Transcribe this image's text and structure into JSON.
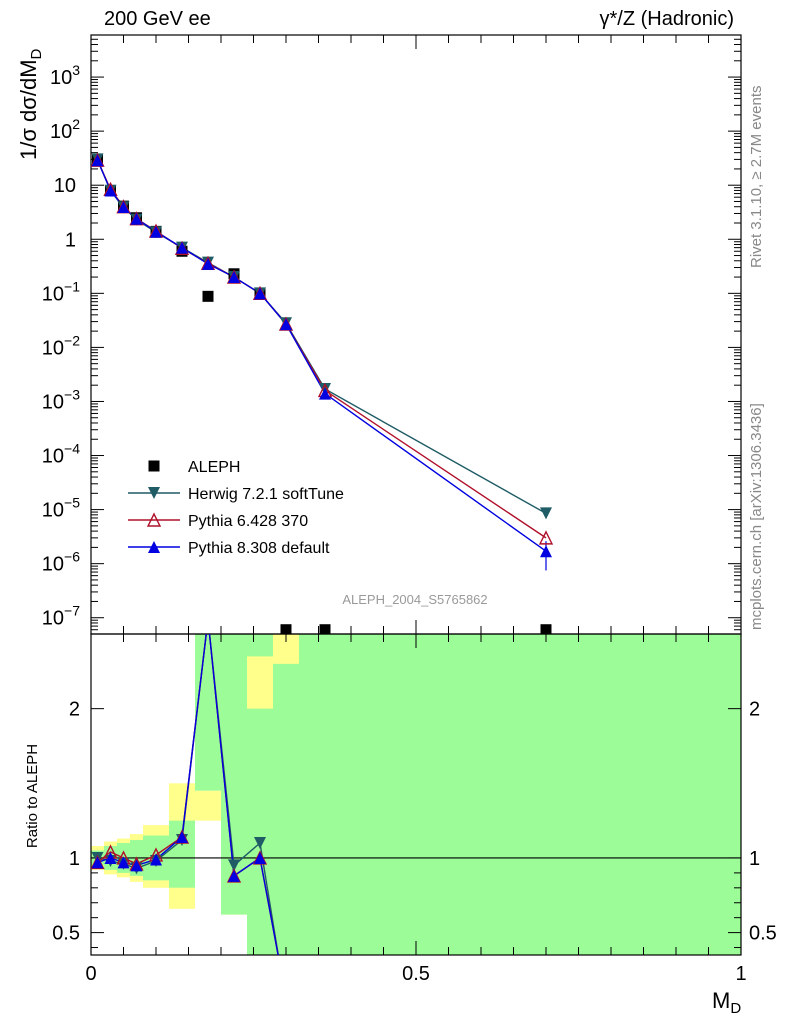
{
  "header": {
    "left": "200 GeV ee",
    "right": "γ*/Z (Hadronic)"
  },
  "side_labels": {
    "rivet": "Rivet 3.1.10, ≥ 2.7M events",
    "mcplots": "mcplots.cern.ch [arXiv:1306.3436]"
  },
  "chart_data": {
    "type": "line",
    "analysis_label": "ALEPH_2004_S5765862",
    "xlabel": "M_D",
    "xlim": [
      0,
      1
    ],
    "x_ticks": [
      "0",
      "0.5",
      "1"
    ],
    "main": {
      "ylabel": "1/σ  dσ/dM_D",
      "yscale": "log",
      "ylim": [
        5e-08,
        6000
      ],
      "y_ticks": [
        "10^-7",
        "10^-6",
        "10^-5",
        "10^-4",
        "10^-3",
        "10^-2",
        "10^-1",
        "1",
        "10",
        "10^2",
        "10^3"
      ],
      "legend_position": "lower-left",
      "series": [
        {
          "name": "ALEPH",
          "color": "#000000",
          "marker": "square",
          "points": [
            [
              0.01,
              30
            ],
            [
              0.03,
              8
            ],
            [
              0.05,
              4.1
            ],
            [
              0.07,
              2.5
            ],
            [
              0.1,
              1.4
            ],
            [
              0.14,
              0.6
            ],
            [
              0.18,
              0.088
            ],
            [
              0.22,
              0.23
            ],
            [
              0.26,
              0.1
            ],
            [
              0.3,
              6e-08
            ],
            [
              0.36,
              6e-08
            ],
            [
              0.7,
              6e-08
            ]
          ]
        },
        {
          "name": "Herwig 7.2.1 softTune",
          "color": "#1f5c66",
          "marker": "triangle-down",
          "points": [
            [
              0.01,
              30
            ],
            [
              0.03,
              7.9
            ],
            [
              0.05,
              3.9
            ],
            [
              0.07,
              2.3
            ],
            [
              0.1,
              1.35
            ],
            [
              0.14,
              0.7
            ],
            [
              0.18,
              0.37
            ],
            [
              0.22,
              0.2
            ],
            [
              0.26,
              0.1
            ],
            [
              0.3,
              0.028
            ],
            [
              0.36,
              0.0017
            ],
            [
              0.7,
              8.5e-06
            ]
          ]
        },
        {
          "name": "Pythia 6.428 370",
          "color": "#b0102a",
          "marker": "triangle-up-open",
          "points": [
            [
              0.01,
              29
            ],
            [
              0.03,
              8.4
            ],
            [
              0.05,
              4.0
            ],
            [
              0.07,
              2.4
            ],
            [
              0.1,
              1.42
            ],
            [
              0.14,
              0.68
            ],
            [
              0.18,
              0.36
            ],
            [
              0.22,
              0.2
            ],
            [
              0.26,
              0.1
            ],
            [
              0.3,
              0.027
            ],
            [
              0.36,
              0.0016
            ],
            [
              0.7,
              3e-06
            ]
          ]
        },
        {
          "name": "Pythia 8.308 default",
          "color": "#0000e0",
          "marker": "triangle-up",
          "points": [
            [
              0.01,
              29
            ],
            [
              0.03,
              8.0
            ],
            [
              0.05,
              3.95
            ],
            [
              0.07,
              2.4
            ],
            [
              0.1,
              1.38
            ],
            [
              0.14,
              0.7
            ],
            [
              0.18,
              0.35
            ],
            [
              0.22,
              0.2
            ],
            [
              0.26,
              0.1
            ],
            [
              0.3,
              0.027
            ],
            [
              0.36,
              0.0014
            ],
            [
              0.7,
              1.7e-06
            ]
          ],
          "last_point_error": [
            7.5e-07,
            2.6e-06
          ]
        }
      ]
    },
    "ratio": {
      "ylabel": "Ratio to ALEPH",
      "ylim": [
        0.35,
        2.5
      ],
      "y_ticks": [
        "0.5",
        "1",
        "2"
      ],
      "reference_line": 1,
      "bands": {
        "x_edges": [
          0,
          0.02,
          0.04,
          0.06,
          0.08,
          0.12,
          0.16,
          0.2,
          0.24,
          0.28,
          0.32,
          0.4,
          1.0
        ],
        "green": [
          [
            0.95,
            1.05
          ],
          [
            0.92,
            1.08
          ],
          [
            0.9,
            1.1
          ],
          [
            0.88,
            1.12
          ],
          [
            0.85,
            1.15
          ],
          [
            0.8,
            1.25
          ],
          [
            0.35,
            2.5
          ],
          [
            0.35,
            2.5
          ],
          [
            0.35,
            2.5
          ],
          [
            0.35,
            2.5
          ],
          [
            0.35,
            2.5
          ],
          [
            0.35,
            2.5
          ]
        ],
        "yellow": [
          [
            0.92,
            1.08
          ],
          [
            0.89,
            1.11
          ],
          [
            0.87,
            1.13
          ],
          [
            0.84,
            1.16
          ],
          [
            0.8,
            1.22
          ],
          [
            0.66,
            1.5
          ],
          [
            0.35,
            2.5
          ],
          [
            0.35,
            2.5
          ],
          [
            0.35,
            2.5
          ],
          [
            0.35,
            2.5
          ],
          [
            0.35,
            2.5
          ],
          [
            0.35,
            2.5
          ]
        ],
        "green_overrides": [
          [
            0.2,
            0.24,
            0.62,
            2.5
          ],
          [
            0.24,
            0.28,
            0.35,
            2.0
          ],
          [
            0.28,
            0.32,
            0.35,
            2.3
          ]
        ],
        "white_gaps": [
          [
            0.16,
            0.2,
            0.35,
            1.45
          ],
          [
            0.2,
            0.24,
            0.35,
            0.62
          ]
        ]
      },
      "series": [
        {
          "name": "Herwig 7.2.1 softTune",
          "points": [
            [
              0.01,
              1.0
            ],
            [
              0.03,
              0.98
            ],
            [
              0.05,
              0.96
            ],
            [
              0.07,
              0.93
            ],
            [
              0.1,
              0.98
            ],
            [
              0.14,
              1.12
            ],
            [
              0.18,
              2.6
            ],
            [
              0.22,
              0.95
            ],
            [
              0.26,
              1.1
            ],
            [
              0.29,
              0.3
            ]
          ]
        },
        {
          "name": "Pythia 6.428 370",
          "points": [
            [
              0.01,
              0.97
            ],
            [
              0.03,
              1.04
            ],
            [
              0.05,
              1.0
            ],
            [
              0.07,
              0.96
            ],
            [
              0.1,
              1.02
            ],
            [
              0.14,
              1.14
            ],
            [
              0.18,
              2.6
            ],
            [
              0.22,
              0.88
            ],
            [
              0.26,
              1.0
            ],
            [
              0.29,
              0.3
            ]
          ]
        },
        {
          "name": "Pythia 8.308 default",
          "points": [
            [
              0.01,
              0.97
            ],
            [
              0.03,
              1.0
            ],
            [
              0.05,
              0.97
            ],
            [
              0.07,
              0.95
            ],
            [
              0.1,
              0.99
            ],
            [
              0.14,
              1.14
            ],
            [
              0.18,
              2.6
            ],
            [
              0.22,
              0.88
            ],
            [
              0.26,
              1.0
            ],
            [
              0.29,
              0.3
            ]
          ]
        }
      ]
    }
  }
}
